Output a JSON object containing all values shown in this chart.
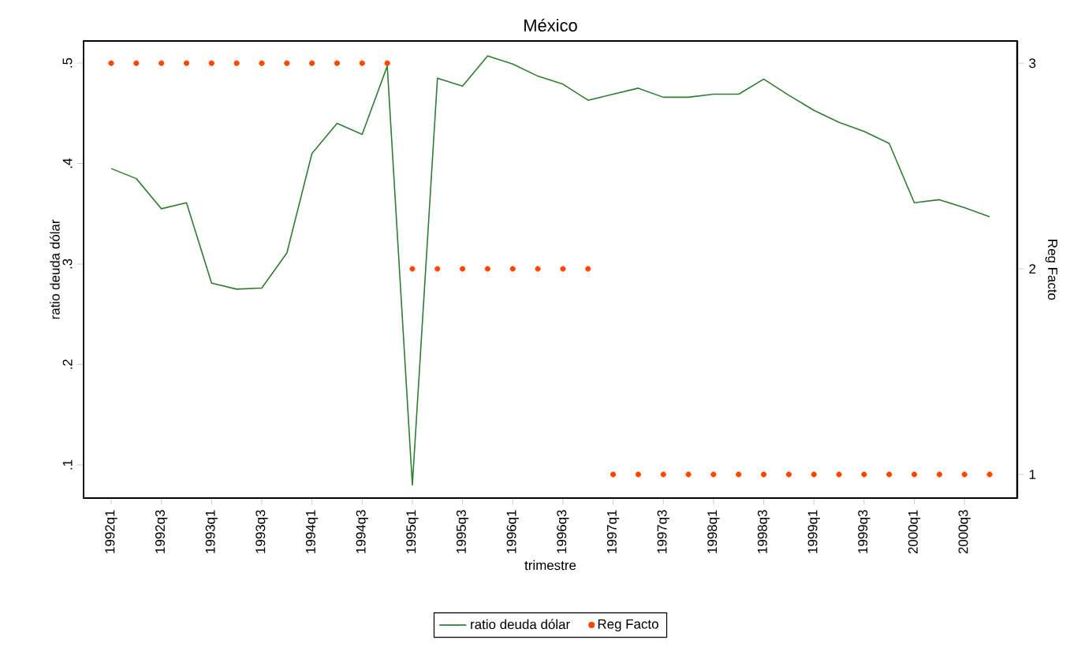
{
  "chart_data": {
    "type": "line",
    "title": "México",
    "xlabel": "trimestre",
    "ylabel": "ratio deuda dólar",
    "y2label": "Reg Facto",
    "categories": [
      "1992q1",
      null,
      "1992q3",
      null,
      "1993q1",
      null,
      "1993q3",
      null,
      "1994q1",
      null,
      "1994q3",
      null,
      "1995q1",
      null,
      "1995q3",
      null,
      "1996q1",
      null,
      "1996q3",
      null,
      "1997q1",
      null,
      "1997q3",
      null,
      "1998q1",
      null,
      "1998q3",
      null,
      "1999q1",
      null,
      "1999q3",
      null,
      "2000q1",
      null,
      "2000q3",
      null
    ],
    "series": [
      {
        "name": "ratio deuda dólar",
        "color": "#2e7d32",
        "marker": "none",
        "line_style": "solid",
        "values": [
          0.395,
          0.385,
          0.355,
          0.361,
          0.281,
          0.275,
          0.276,
          0.311,
          0.41,
          0.44,
          0.429,
          0.497,
          0.08,
          0.485,
          0.477,
          0.507,
          0.499,
          0.487,
          0.479,
          0.463,
          0.469,
          0.475,
          0.466,
          0.466,
          0.469,
          0.469,
          0.484,
          0.468,
          0.453,
          0.441,
          0.432,
          0.42,
          0.361,
          0.364,
          0.356,
          0.347
        ]
      },
      {
        "name": "Reg Facto",
        "type": "scatter",
        "axis": "y2",
        "color": "#ff4500",
        "marker": "circle",
        "values": [
          3,
          3,
          3,
          3,
          3,
          3,
          3,
          3,
          3,
          3,
          3,
          3,
          2,
          2,
          2,
          2,
          2,
          2,
          2,
          2,
          1,
          1,
          1,
          1,
          1,
          1,
          1,
          1,
          1,
          1,
          1,
          1,
          1,
          1,
          1,
          1
        ]
      }
    ],
    "ylim": [
      0.067,
      0.522
    ],
    "yticks": [
      {
        "value": 0.1,
        "label": ".1"
      },
      {
        "value": 0.2,
        "label": ".2"
      },
      {
        "value": 0.3,
        "label": ".3"
      },
      {
        "value": 0.4,
        "label": ".4"
      },
      {
        "value": 0.5,
        "label": ".5"
      }
    ],
    "y2lim": [
      0.885,
      3.108
    ],
    "y2ticks": [
      1,
      2,
      3
    ],
    "legend": "bottom"
  }
}
